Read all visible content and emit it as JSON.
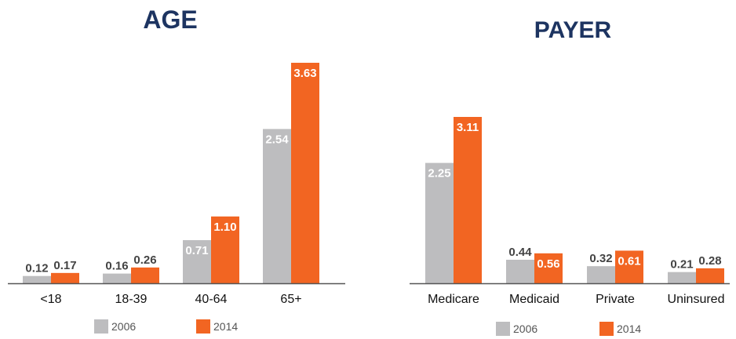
{
  "colors": {
    "series_2006": "#bdbdbf",
    "series_2014": "#f26522",
    "title": "#1d3461",
    "axis": "#555555",
    "label_dark": "#444444",
    "label_light": "#ffffff"
  },
  "chart_data": [
    {
      "type": "bar",
      "title": "AGE",
      "categories": [
        "<18",
        "18-39",
        "40-64",
        "65+"
      ],
      "series": [
        {
          "name": "2006",
          "values": [
            0.12,
            0.16,
            0.71,
            2.54
          ]
        },
        {
          "name": "2014",
          "values": [
            0.17,
            0.26,
            1.1,
            3.63
          ]
        }
      ],
      "value_labels": [
        [
          "0.12",
          "0.16",
          "0.71",
          "2.54"
        ],
        [
          "0.17",
          "0.26",
          "1.10",
          "3.63"
        ]
      ],
      "ylim": [
        0,
        3.63
      ],
      "grid": false,
      "legend_position": "bottom"
    },
    {
      "type": "bar",
      "title": "PAYER",
      "categories": [
        "Medicare",
        "Medicaid",
        "Private",
        "Uninsured"
      ],
      "series": [
        {
          "name": "2006",
          "values": [
            2.25,
            0.44,
            0.32,
            0.21
          ]
        },
        {
          "name": "2014",
          "values": [
            3.11,
            0.56,
            0.61,
            0.28
          ]
        }
      ],
      "value_labels": [
        [
          "2.25",
          "0.44",
          "0.32",
          "0.21"
        ],
        [
          "3.11",
          "0.56",
          "0.61",
          "0.28"
        ]
      ],
      "ylim": [
        0,
        3.11
      ],
      "grid": false,
      "legend_position": "bottom"
    }
  ]
}
